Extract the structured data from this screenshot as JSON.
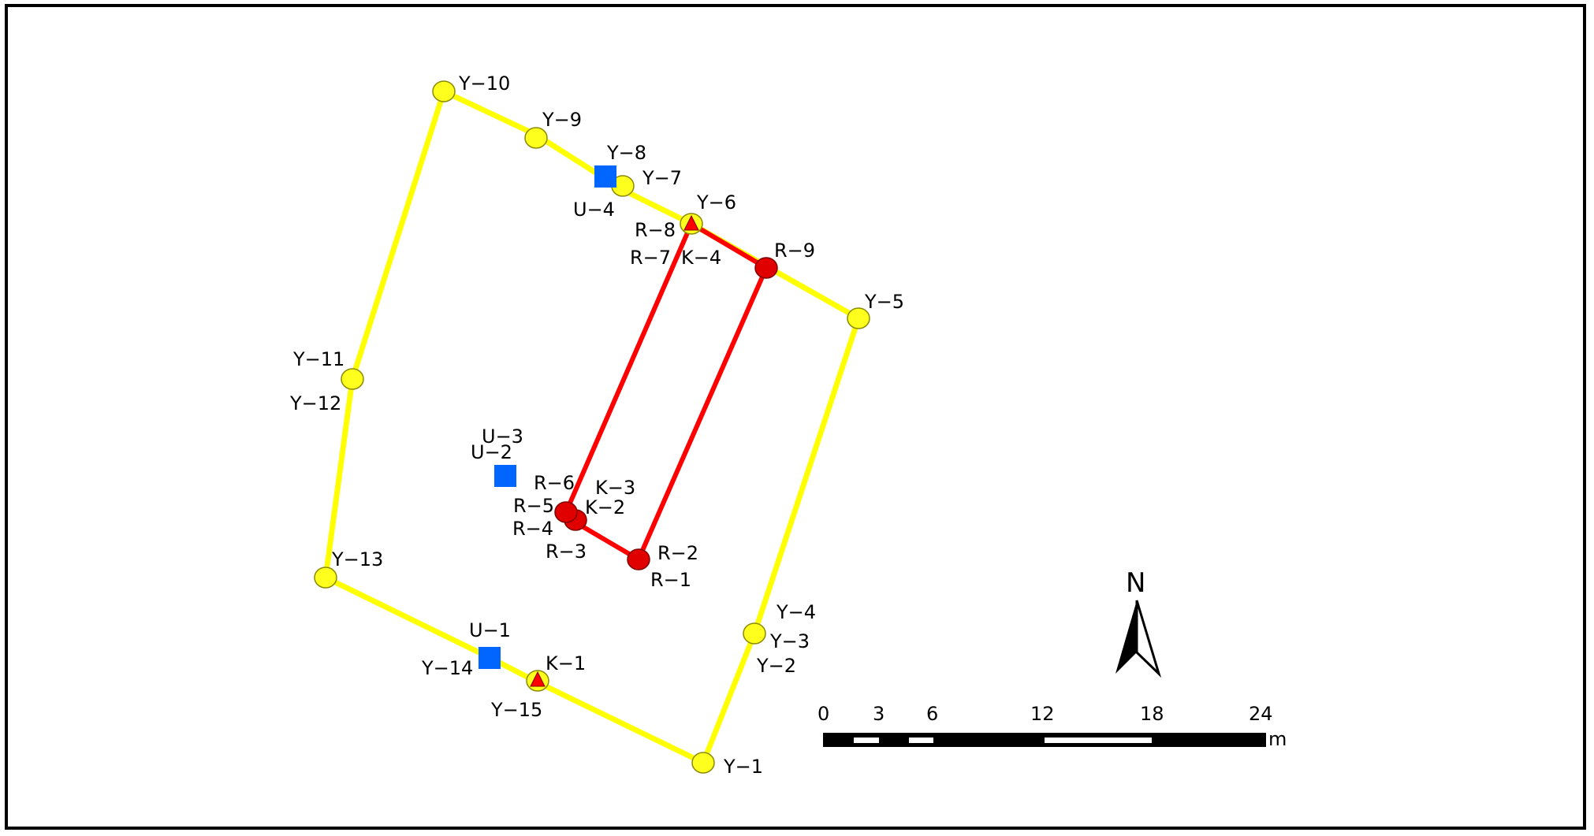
{
  "colors": {
    "yellow_line": "#ffff00",
    "yellow_point": "#ffff1e",
    "red_line": "#ff0000",
    "red_point": "#e00000",
    "blue_marker": "#0066ff",
    "triangle": "#ff0000",
    "frame": "#000000"
  },
  "legend_symbols": {
    "yellow_point": "circle",
    "red_point": "circle",
    "U_points": "square",
    "K_points": "triangle"
  },
  "labels": {
    "Y1": "Y−1",
    "Y2": "Y−2",
    "Y3": "Y−3",
    "Y4": "Y−4",
    "Y5": "Y−5",
    "Y6": "Y−6",
    "Y7": "Y−7",
    "Y8": "Y−8",
    "Y9": "Y−9",
    "Y10": "Y−10",
    "Y11": "Y−11",
    "Y12": "Y−12",
    "Y13": "Y−13",
    "Y14": "Y−14",
    "Y15": "Y−15",
    "R1": "R−1",
    "R2": "R−2",
    "R3": "R−3",
    "R4": "R−4",
    "R5": "R−5",
    "R6": "R−6",
    "R7": "R−7",
    "R8": "R−8",
    "R9": "R−9",
    "K1": "K−1",
    "K2": "K−2",
    "K3": "K−3",
    "K4": "K−4",
    "U1": "U−1",
    "U2": "U−2",
    "U3": "U−3",
    "U4": "U−4"
  },
  "north_arrow": {
    "label": "N"
  },
  "scale_bar": {
    "ticks": [
      "0",
      "3",
      "6",
      "12",
      "18",
      "24"
    ],
    "unit": "m"
  }
}
